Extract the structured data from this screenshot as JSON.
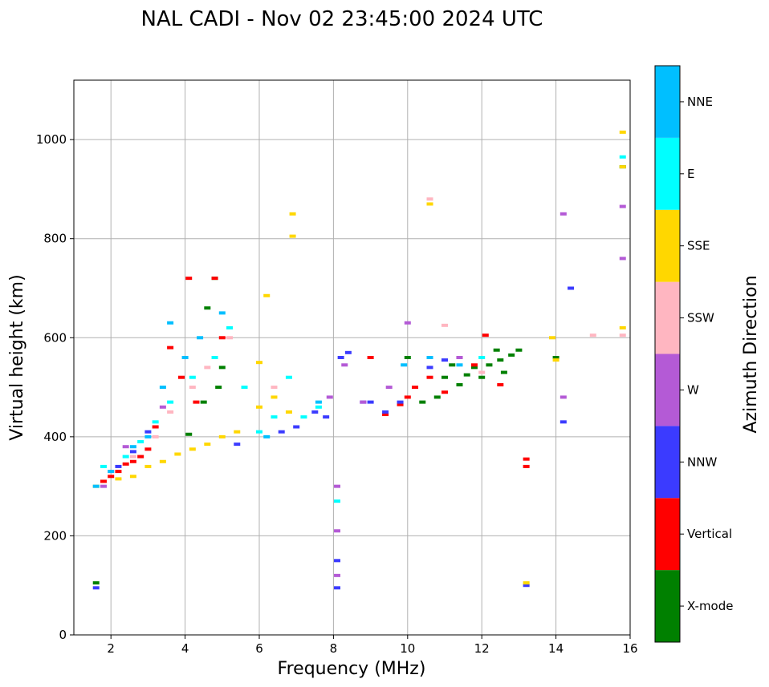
{
  "chart_data": {
    "type": "scatter",
    "title": "NAL CADI - Nov 02 23:45:00 2024 UTC",
    "xlabel": "Frequency (MHz)",
    "ylabel": "Virtual height (km)",
    "xlim": [
      1,
      16
    ],
    "ylim": [
      0,
      1120
    ],
    "xticks": [
      2,
      4,
      6,
      8,
      10,
      12,
      14,
      16
    ],
    "yticks": [
      0,
      200,
      400,
      600,
      800,
      1000
    ],
    "grid": true,
    "colorbar": {
      "label": "Azimuth Direction",
      "categories": [
        {
          "name": "X-mode",
          "color": "#008000"
        },
        {
          "name": "Vertical",
          "color": "#ff0000"
        },
        {
          "name": "NNW",
          "color": "#3b3bff"
        },
        {
          "name": "W",
          "color": "#b45ad6"
        },
        {
          "name": "SSW",
          "color": "#ffb6c1"
        },
        {
          "name": "SSE",
          "color": "#ffd700"
        },
        {
          "name": "E",
          "color": "#00ffff"
        },
        {
          "name": "NNE",
          "color": "#00bfff"
        }
      ]
    },
    "series": [
      {
        "name": "X-mode",
        "points": [
          [
            1.6,
            105
          ],
          [
            4.1,
            405
          ],
          [
            4.5,
            470
          ],
          [
            4.6,
            660
          ],
          [
            4.8,
            720
          ],
          [
            4.9,
            500
          ],
          [
            5.0,
            540
          ],
          [
            10.0,
            560
          ],
          [
            10.4,
            470
          ],
          [
            10.8,
            480
          ],
          [
            11.0,
            520
          ],
          [
            11.2,
            545
          ],
          [
            11.4,
            505
          ],
          [
            11.6,
            525
          ],
          [
            11.8,
            540
          ],
          [
            12.0,
            520
          ],
          [
            12.2,
            545
          ],
          [
            12.4,
            575
          ],
          [
            12.5,
            555
          ],
          [
            12.6,
            530
          ],
          [
            12.8,
            565
          ],
          [
            13.0,
            575
          ],
          [
            14.0,
            560
          ],
          [
            15.8,
            945
          ]
        ]
      },
      {
        "name": "Vertical",
        "points": [
          [
            1.8,
            310
          ],
          [
            2.0,
            320
          ],
          [
            2.2,
            330
          ],
          [
            2.4,
            345
          ],
          [
            2.6,
            350
          ],
          [
            2.8,
            360
          ],
          [
            3.0,
            375
          ],
          [
            3.2,
            420
          ],
          [
            3.6,
            580
          ],
          [
            3.9,
            520
          ],
          [
            4.1,
            720
          ],
          [
            4.3,
            470
          ],
          [
            4.8,
            720
          ],
          [
            5.0,
            600
          ],
          [
            9.0,
            560
          ],
          [
            9.4,
            445
          ],
          [
            9.8,
            465
          ],
          [
            10.0,
            480
          ],
          [
            10.2,
            500
          ],
          [
            10.6,
            520
          ],
          [
            11.0,
            490
          ],
          [
            11.4,
            560
          ],
          [
            11.8,
            545
          ],
          [
            12.1,
            605
          ],
          [
            12.5,
            505
          ],
          [
            13.2,
            355
          ],
          [
            13.2,
            340
          ]
        ]
      },
      {
        "name": "NNW",
        "points": [
          [
            1.6,
            95
          ],
          [
            2.2,
            340
          ],
          [
            2.6,
            370
          ],
          [
            3.0,
            410
          ],
          [
            5.4,
            385
          ],
          [
            6.6,
            410
          ],
          [
            7.0,
            420
          ],
          [
            7.5,
            450
          ],
          [
            7.8,
            440
          ],
          [
            8.2,
            560
          ],
          [
            8.1,
            150
          ],
          [
            8.1,
            95
          ],
          [
            8.4,
            570
          ],
          [
            8.8,
            470
          ],
          [
            9.0,
            470
          ],
          [
            9.4,
            450
          ],
          [
            9.8,
            470
          ],
          [
            10.6,
            540
          ],
          [
            11.0,
            555
          ],
          [
            13.2,
            100
          ],
          [
            14.2,
            430
          ],
          [
            14.4,
            700
          ]
        ]
      },
      {
        "name": "W",
        "points": [
          [
            1.8,
            300
          ],
          [
            2.4,
            380
          ],
          [
            3.4,
            460
          ],
          [
            7.9,
            480
          ],
          [
            8.1,
            300
          ],
          [
            8.1,
            210
          ],
          [
            8.1,
            120
          ],
          [
            8.3,
            545
          ],
          [
            8.8,
            470
          ],
          [
            9.5,
            500
          ],
          [
            10.0,
            630
          ],
          [
            11.4,
            560
          ],
          [
            14.2,
            850
          ],
          [
            14.2,
            480
          ],
          [
            15.8,
            865
          ],
          [
            15.8,
            760
          ]
        ]
      },
      {
        "name": "SSW",
        "points": [
          [
            2.0,
            330
          ],
          [
            2.6,
            360
          ],
          [
            3.2,
            400
          ],
          [
            3.6,
            450
          ],
          [
            4.2,
            500
          ],
          [
            4.6,
            540
          ],
          [
            5.2,
            600
          ],
          [
            6.4,
            500
          ],
          [
            10.6,
            880
          ],
          [
            11.0,
            625
          ],
          [
            12.0,
            530
          ],
          [
            15.0,
            605
          ],
          [
            15.8,
            605
          ]
        ]
      },
      {
        "name": "SSE",
        "points": [
          [
            1.6,
            300
          ],
          [
            2.2,
            315
          ],
          [
            2.6,
            320
          ],
          [
            3.0,
            340
          ],
          [
            3.4,
            350
          ],
          [
            3.8,
            365
          ],
          [
            4.2,
            375
          ],
          [
            4.6,
            385
          ],
          [
            5.0,
            400
          ],
          [
            5.4,
            410
          ],
          [
            6.0,
            460
          ],
          [
            6.0,
            550
          ],
          [
            6.2,
            685
          ],
          [
            6.4,
            480
          ],
          [
            6.8,
            450
          ],
          [
            6.9,
            850
          ],
          [
            6.9,
            805
          ],
          [
            10.6,
            870
          ],
          [
            13.2,
            105
          ],
          [
            13.9,
            600
          ],
          [
            14.0,
            555
          ],
          [
            15.8,
            1015
          ],
          [
            15.8,
            945
          ],
          [
            15.8,
            620
          ]
        ]
      },
      {
        "name": "E",
        "points": [
          [
            1.8,
            340
          ],
          [
            2.4,
            360
          ],
          [
            2.8,
            390
          ],
          [
            3.2,
            430
          ],
          [
            3.6,
            470
          ],
          [
            4.2,
            520
          ],
          [
            4.8,
            560
          ],
          [
            5.2,
            620
          ],
          [
            5.6,
            500
          ],
          [
            6.0,
            410
          ],
          [
            6.4,
            440
          ],
          [
            6.8,
            520
          ],
          [
            7.2,
            440
          ],
          [
            7.6,
            460
          ],
          [
            8.1,
            270
          ],
          [
            12.0,
            560
          ],
          [
            15.8,
            965
          ]
        ]
      },
      {
        "name": "NNE",
        "points": [
          [
            1.6,
            300
          ],
          [
            2.0,
            330
          ],
          [
            2.6,
            380
          ],
          [
            3.0,
            400
          ],
          [
            3.4,
            500
          ],
          [
            3.6,
            630
          ],
          [
            4.0,
            560
          ],
          [
            4.4,
            600
          ],
          [
            5.0,
            650
          ],
          [
            6.2,
            400
          ],
          [
            7.6,
            470
          ],
          [
            9.9,
            545
          ],
          [
            10.6,
            560
          ],
          [
            11.4,
            545
          ]
        ]
      }
    ]
  }
}
